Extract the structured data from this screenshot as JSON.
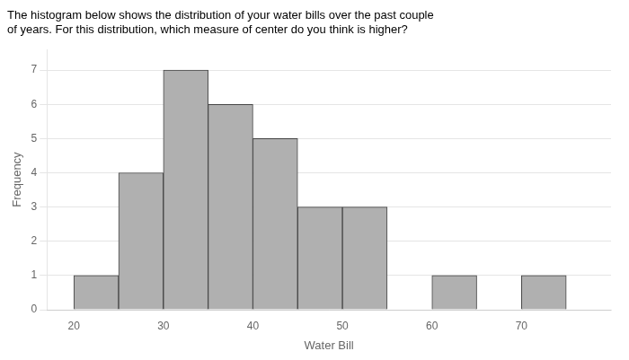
{
  "chart_data": {
    "type": "histogram",
    "title": [
      "The histogram below shows the distribution of your water bills over the past couple",
      "of years. For this distribution, which measure of center do you think is higher?"
    ],
    "x_label": "Water Bill",
    "y_label": "Frequency",
    "bins": [
      20,
      25,
      30,
      35,
      40,
      45,
      50,
      55,
      60,
      65,
      70,
      75
    ],
    "values": [
      1,
      4,
      7,
      6,
      5,
      3,
      3,
      0,
      1,
      0,
      1
    ],
    "color": "#b0b0b0",
    "xlim": [
      17,
      80
    ],
    "xticks": [
      20,
      30,
      40,
      50,
      60,
      70
    ],
    "ylim": [
      0,
      7.6
    ],
    "yticks": [
      0,
      1,
      2,
      3,
      4,
      5,
      6,
      7
    ],
    "grid": "y"
  }
}
